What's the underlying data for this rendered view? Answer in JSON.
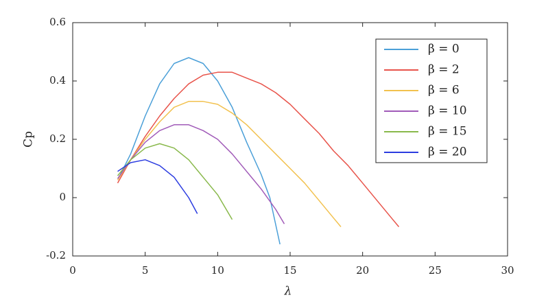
{
  "chart_data": {
    "type": "line",
    "x_label": "λ",
    "y_label": "Cp",
    "xlim": [
      0,
      30
    ],
    "xticks": [
      0,
      5,
      10,
      15,
      20,
      25,
      30
    ],
    "ylim": [
      -0.2,
      0.6
    ],
    "yticks": [
      -0.2,
      0,
      0.2,
      0.4,
      0.6
    ],
    "grid": false,
    "legend": "upper right",
    "series": [
      {
        "name": "β = 0",
        "color": "#4a9fd8",
        "x": [
          3.2,
          4,
          5,
          6,
          7,
          8,
          9,
          10,
          11,
          12,
          13,
          13.6,
          14.3
        ],
        "values": [
          0.07,
          0.15,
          0.28,
          0.39,
          0.46,
          0.48,
          0.46,
          0.4,
          0.31,
          0.19,
          0.08,
          0,
          -0.16
        ]
      },
      {
        "name": "β = 2",
        "color": "#e8534a",
        "x": [
          3.1,
          4,
          5,
          6,
          7,
          8,
          9,
          10,
          11,
          12,
          13,
          14,
          15,
          16,
          17,
          18,
          19,
          20,
          21,
          22,
          22.5
        ],
        "values": [
          0.05,
          0.13,
          0.21,
          0.28,
          0.34,
          0.39,
          0.42,
          0.43,
          0.43,
          0.41,
          0.39,
          0.36,
          0.32,
          0.27,
          0.22,
          0.16,
          0.11,
          0.05,
          -0.01,
          -0.07,
          -0.1
        ]
      },
      {
        "name": "β = 6",
        "color": "#f2c14e",
        "x": [
          3.1,
          4,
          5,
          6,
          7,
          8,
          9,
          10,
          11,
          12,
          13,
          14,
          15,
          16,
          17,
          18,
          18.5
        ],
        "values": [
          0.06,
          0.13,
          0.2,
          0.26,
          0.31,
          0.33,
          0.33,
          0.32,
          0.29,
          0.25,
          0.2,
          0.15,
          0.1,
          0.05,
          -0.01,
          -0.07,
          -0.1
        ]
      },
      {
        "name": "β = 10",
        "color": "#a05ab8",
        "x": [
          3.1,
          4,
          5,
          6,
          7,
          8,
          9,
          10,
          11,
          12,
          13,
          14,
          14.6
        ],
        "values": [
          0.065,
          0.13,
          0.19,
          0.23,
          0.25,
          0.25,
          0.23,
          0.2,
          0.15,
          0.09,
          0.03,
          -0.04,
          -0.09
        ]
      },
      {
        "name": "β = 15",
        "color": "#88b84a",
        "x": [
          3.1,
          4,
          5,
          6,
          7,
          8,
          9,
          10,
          11
        ],
        "values": [
          0.075,
          0.13,
          0.17,
          0.185,
          0.17,
          0.13,
          0.07,
          0.01,
          -0.075
        ]
      },
      {
        "name": "β = 20",
        "color": "#2b3ce0",
        "x": [
          3.1,
          4,
          5,
          6,
          7,
          8,
          8.6
        ],
        "values": [
          0.09,
          0.12,
          0.13,
          0.11,
          0.07,
          0,
          -0.055
        ]
      }
    ]
  }
}
